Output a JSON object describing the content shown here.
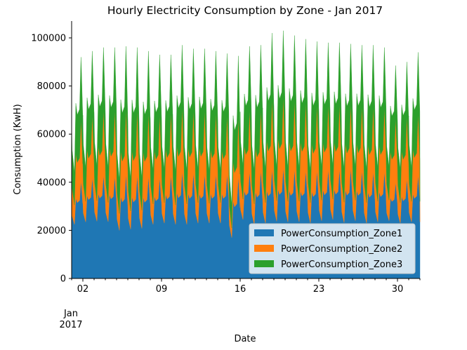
{
  "chart_data": {
    "type": "area",
    "stacked": true,
    "title": "Hourly Electricity Consumption by Zone - Jan 2017",
    "xlabel": "Date",
    "ylabel": "Consumption (KwH)",
    "xlim": [
      "2017-01-01",
      "2017-02-01"
    ],
    "ylim": [
      0,
      107000
    ],
    "y_ticks": [
      0,
      20000,
      40000,
      60000,
      80000,
      100000
    ],
    "x_ticks": [
      {
        "date": "2017-01-02",
        "label": "02"
      },
      {
        "date": "2017-01-09",
        "label": "09"
      },
      {
        "date": "2017-01-16",
        "label": "16"
      },
      {
        "date": "2017-01-23",
        "label": "23"
      },
      {
        "date": "2017-01-30",
        "label": "30"
      }
    ],
    "x_minor_ticks_every_days": 1,
    "x_secondary_label": {
      "month": "Jan",
      "year": "2017"
    },
    "grid": false,
    "legend_position": "lower-right",
    "series": [
      {
        "name": "PowerConsumption_Zone1",
        "color": "#1f77b4",
        "daily_min": [
          22500,
          23500,
          23800,
          23600,
          20000,
          20500,
          20800,
          22500,
          23000,
          22500,
          22500,
          23000,
          23000,
          23000,
          17000,
          24500,
          22500,
          23000,
          23800,
          23500,
          23600,
          23000,
          24000,
          24500,
          23200,
          24000,
          23000,
          23500,
          24000,
          23000,
          23500
        ],
        "daily_max": [
          40500,
          42000,
          43000,
          42500,
          43500,
          43000,
          42500,
          42000,
          43000,
          44500,
          44000,
          43500,
          43500,
          43500,
          42500,
          44500,
          45000,
          45500,
          46000,
          45500,
          45000,
          45000,
          45500,
          45500,
          46000,
          45000,
          44500,
          44500,
          40000,
          41500,
          43000
        ]
      },
      {
        "name": "PowerConsumption_Zone2",
        "color": "#ff7f0e",
        "daily_min": [
          8000,
          8500,
          8500,
          8000,
          7000,
          7500,
          7500,
          8500,
          8500,
          8000,
          8500,
          8500,
          8200,
          8500,
          4000,
          8500,
          8500,
          8500,
          8500,
          8500,
          8500,
          8500,
          8500,
          8500,
          8500,
          8500,
          8500,
          8500,
          8500,
          8500,
          8500
        ],
        "daily_max": [
          25500,
          26000,
          27000,
          27500,
          27000,
          27000,
          26500,
          26000,
          26000,
          26500,
          26000,
          26500,
          25500,
          24500,
          24500,
          25500,
          25000,
          29000,
          29500,
          28500,
          28500,
          27500,
          27000,
          27000,
          26500,
          27000,
          27000,
          26500,
          26500,
          26000,
          25500
        ]
      },
      {
        "name": "PowerConsumption_Zone3",
        "color": "#2ca02c",
        "daily_min": [
          13500,
          14000,
          14500,
          14500,
          14000,
          13500,
          13500,
          14000,
          14000,
          14000,
          14000,
          14000,
          13500,
          13500,
          9500,
          14000,
          14000,
          14000,
          14000,
          14000,
          14000,
          13500,
          14000,
          14000,
          14000,
          14000,
          14000,
          14000,
          14000,
          14000,
          14000
        ],
        "daily_max": [
          26000,
          26500,
          26000,
          26000,
          26000,
          26000,
          25500,
          25000,
          24000,
          26000,
          25500,
          25500,
          25500,
          25500,
          25500,
          26500,
          27000,
          27500,
          27500,
          27000,
          26000,
          26000,
          25500,
          25500,
          25000,
          25000,
          25500,
          25000,
          22000,
          22500,
          25500
        ]
      }
    ]
  }
}
